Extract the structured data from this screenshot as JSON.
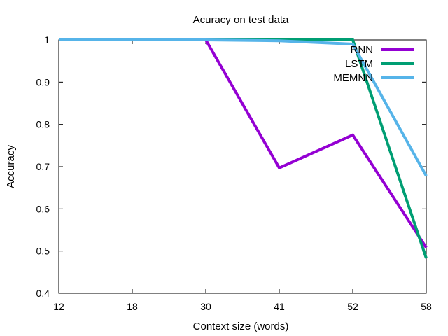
{
  "chart_data": {
    "type": "line",
    "title": "Acuracy on test data",
    "xlabel": "Context size (words)",
    "ylabel": "Accuracy",
    "x": [
      12,
      18,
      30,
      41,
      52,
      58
    ],
    "x_scale": "categorical",
    "ylim": [
      0.4,
      1.0
    ],
    "yticks": [
      0.4,
      0.5,
      0.6,
      0.7,
      0.8,
      0.9,
      1
    ],
    "ytick_labels": [
      "0.4",
      "0.5",
      "0.6",
      "0.7",
      "0.8",
      "0.9",
      "1"
    ],
    "grid": false,
    "legend_position": "top-right",
    "series": [
      {
        "name": "RNN",
        "color": "#9400d3",
        "values": [
          1.0,
          1.0,
          1.0,
          0.697,
          0.775,
          0.508
        ]
      },
      {
        "name": "LSTM",
        "color": "#009e73",
        "values": [
          1.0,
          1.0,
          1.0,
          1.0,
          1.0,
          0.483
        ]
      },
      {
        "name": "MEMNN",
        "color": "#56b4e9",
        "values": [
          1.0,
          1.0,
          1.0,
          0.998,
          0.99,
          0.678
        ]
      }
    ]
  }
}
